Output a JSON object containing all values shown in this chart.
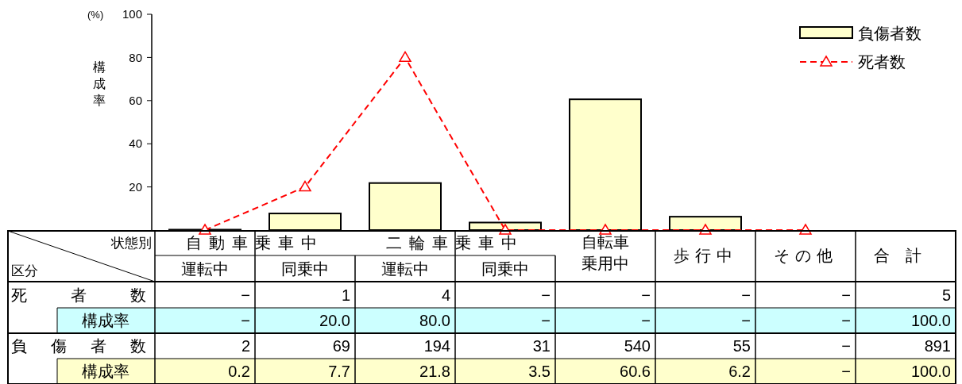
{
  "chart_data": {
    "type": "bar",
    "ylabel": "構成率",
    "categories": [
      "運転中",
      "同乗中",
      "運転中",
      "同乗中",
      "自転車乗用中",
      "歩行中",
      "その他",
      "合計"
    ],
    "ylim": [
      0,
      100
    ],
    "yticks": [
      20,
      40,
      60,
      80,
      100
    ],
    "legend": "top right",
    "marker": "triangle",
    "line_style": "dashed",
    "annotations": [
      "(%)",
      "状態別",
      "区分",
      "自動車乗車中",
      "二輪車乗車中",
      "死者数",
      "構成率",
      "負傷者数",
      "構成率"
    ],
    "series": [
      {
        "type": "other",
        "values": [
          null,
          null,
          null,
          null,
          null,
          null,
          null,
          null
        ],
        "value_labels": [
          "−",
          "1",
          "4",
          "−",
          "−",
          "−",
          "−",
          "5"
        ]
      },
      {
        "name": "死者数",
        "type": "line",
        "color": "#ff0000",
        "values": [
          0,
          20,
          80,
          0,
          0,
          0,
          0,
          null
        ],
        "value_labels": [
          "−",
          "20.0",
          "80.0",
          "−",
          "−",
          "−",
          "−",
          "100.0"
        ]
      },
      {
        "type": "other",
        "values": [
          null,
          null,
          null,
          null,
          null,
          null,
          null,
          null
        ],
        "value_labels": [
          "2",
          "69",
          "194",
          "31",
          "540",
          "55",
          "−",
          "891"
        ]
      },
      {
        "name": "負傷者数",
        "color": "#ffffcc",
        "values": [
          0.2,
          7.7,
          21.8,
          3.5,
          60.6,
          6.2,
          null,
          null
        ],
        "value_labels": [
          "0.2",
          "7.7",
          "21.8",
          "3.5",
          "60.6",
          "6.2",
          "−",
          "100.0"
        ]
      }
    ]
  }
}
